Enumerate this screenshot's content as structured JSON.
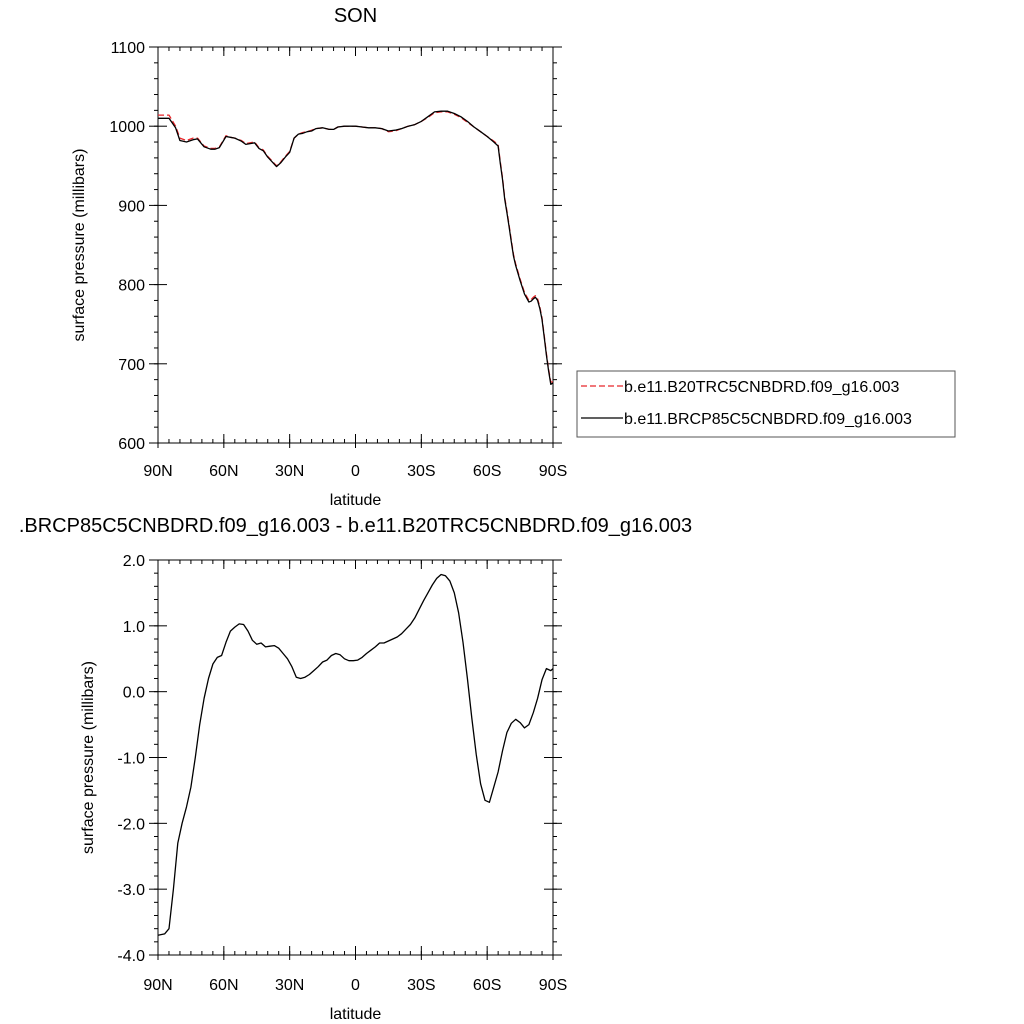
{
  "chart_data": [
    {
      "type": "line",
      "title": "SON",
      "xlabel": "latitude",
      "ylabel": "surface pressure (millibars)",
      "x_ticks": [
        {
          "value": -90,
          "label": "90N"
        },
        {
          "value": -60,
          "label": "60N"
        },
        {
          "value": -30,
          "label": "30N"
        },
        {
          "value": 0,
          "label": "0"
        },
        {
          "value": 30,
          "label": "30S"
        },
        {
          "value": 60,
          "label": "60S"
        },
        {
          "value": 90,
          "label": "90S"
        }
      ],
      "y_ticks": [
        {
          "value": 600,
          "label": "600"
        },
        {
          "value": 700,
          "label": "700"
        },
        {
          "value": 800,
          "label": "800"
        },
        {
          "value": 900,
          "label": "900"
        },
        {
          "value": 1000,
          "label": "1000"
        },
        {
          "value": 1100,
          "label": "1100"
        }
      ],
      "xlim": [
        -90,
        90
      ],
      "ylim": [
        600,
        1100
      ],
      "legend_position": "right",
      "series": [
        {
          "name": "b.e11.B20TRC5CNBDRD.f09_g16.003",
          "color": "#e8262a",
          "dash": "dashed",
          "x": [
            -90,
            -85,
            -82,
            -80,
            -77,
            -74,
            -72,
            -69,
            -66,
            -64,
            -62,
            -59,
            -57,
            -55,
            -52,
            -50,
            -48,
            -46,
            -44,
            -42,
            -40,
            -38,
            -36,
            -34,
            -32,
            -30,
            -28,
            -26,
            -24,
            -22,
            -20,
            -18,
            -15,
            -12,
            -10,
            -8,
            -5,
            -2,
            0,
            3,
            6,
            9,
            12,
            15,
            18,
            21,
            24,
            27,
            30,
            33,
            36,
            39,
            42,
            45,
            48,
            51,
            54,
            57,
            60,
            63,
            65,
            66,
            67,
            68,
            69,
            70,
            71,
            72,
            73,
            75,
            77,
            79,
            80,
            81,
            82,
            83,
            84,
            85,
            86,
            87,
            88,
            89,
            90
          ],
          "values": [
            1014,
            1014,
            1000,
            985,
            982,
            985,
            985,
            975,
            972,
            972,
            974,
            988,
            986,
            985,
            982,
            978,
            979,
            980,
            973,
            970,
            962,
            956,
            950,
            955,
            962,
            968,
            985,
            990,
            992,
            993,
            995,
            997,
            998,
            996,
            996,
            999,
            1000,
            1000,
            1000,
            999,
            998,
            998,
            997,
            993,
            994,
            997,
            1000,
            1002,
            1006,
            1011,
            1017,
            1018,
            1018,
            1015,
            1011,
            1005,
            999,
            993,
            987,
            981,
            977,
            955,
            935,
            910,
            893,
            875,
            856,
            838,
            826,
            807,
            790,
            780,
            781,
            784,
            786,
            782,
            772,
            758,
            736,
            713,
            693,
            677,
            677
          ]
        },
        {
          "name": "b.e11.BRCP85C5CNBDRD.f09_g16.003",
          "color": "#000000",
          "dash": "solid",
          "x": [
            -90,
            -85,
            -82,
            -80,
            -77,
            -74,
            -72,
            -69,
            -66,
            -64,
            -62,
            -59,
            -57,
            -55,
            -52,
            -50,
            -48,
            -46,
            -44,
            -42,
            -40,
            -38,
            -36,
            -34,
            -32,
            -30,
            -28,
            -26,
            -24,
            -22,
            -20,
            -18,
            -15,
            -12,
            -10,
            -8,
            -5,
            -2,
            0,
            3,
            6,
            9,
            12,
            15,
            18,
            21,
            24,
            27,
            30,
            33,
            36,
            39,
            42,
            45,
            48,
            51,
            54,
            57,
            60,
            63,
            65,
            66,
            67,
            68,
            69,
            70,
            71,
            72,
            73,
            75,
            77,
            79,
            80,
            81,
            82,
            83,
            84,
            85,
            86,
            87,
            88,
            89,
            90
          ],
          "values": [
            1010,
            1010,
            998,
            982,
            980,
            983,
            984,
            974,
            971,
            971,
            973,
            987,
            986,
            985,
            981,
            977,
            978,
            979,
            972,
            969,
            961,
            955,
            949,
            954,
            961,
            967,
            985,
            990,
            991,
            993,
            994,
            997,
            998,
            996,
            996,
            999,
            1000,
            1000,
            1000,
            999,
            998,
            998,
            997,
            994,
            995,
            997,
            1000,
            1002,
            1006,
            1012,
            1018,
            1019,
            1019,
            1016,
            1012,
            1006,
            999,
            993,
            987,
            980,
            975,
            953,
            933,
            908,
            891,
            873,
            854,
            836,
            824,
            805,
            788,
            778,
            779,
            782,
            784,
            780,
            770,
            756,
            734,
            711,
            691,
            674,
            676
          ]
        }
      ]
    },
    {
      "type": "line",
      "title": ".BRCP85C5CNBDRD.f09_g16.003 - b.e11.B20TRC5CNBDRD.f09_g16.003",
      "xlabel": "latitude",
      "ylabel": "surface pressure (millibars)",
      "x_ticks": [
        {
          "value": -90,
          "label": "90N"
        },
        {
          "value": -60,
          "label": "60N"
        },
        {
          "value": -30,
          "label": "30N"
        },
        {
          "value": 0,
          "label": "0"
        },
        {
          "value": 30,
          "label": "30S"
        },
        {
          "value": 60,
          "label": "60S"
        },
        {
          "value": 90,
          "label": "90S"
        }
      ],
      "y_ticks": [
        {
          "value": -4,
          "label": "-4.0"
        },
        {
          "value": -3,
          "label": "-3.0"
        },
        {
          "value": -2,
          "label": "-2.0"
        },
        {
          "value": -1,
          "label": "-1.0"
        },
        {
          "value": 0,
          "label": "0.0"
        },
        {
          "value": 1,
          "label": "1.0"
        },
        {
          "value": 2,
          "label": "2.0"
        }
      ],
      "xlim": [
        -90,
        90
      ],
      "ylim": [
        -4,
        2
      ],
      "series": [
        {
          "color": "#000000",
          "dash": "solid",
          "x": [
            -90,
            -87,
            -85,
            -83,
            -81,
            -79,
            -77,
            -75,
            -73,
            -71,
            -69,
            -67,
            -65,
            -63,
            -61,
            -59,
            -57,
            -55,
            -53,
            -51,
            -49,
            -47,
            -45,
            -43,
            -41,
            -39,
            -37,
            -35,
            -33,
            -31,
            -29,
            -27,
            -25,
            -23,
            -21,
            -19,
            -17,
            -15,
            -13,
            -11,
            -9,
            -7,
            -5,
            -3,
            -1,
            1,
            3,
            5,
            7,
            9,
            11,
            13,
            15,
            17,
            19,
            21,
            23,
            25,
            27,
            29,
            31,
            33,
            35,
            37,
            39,
            41,
            43,
            45,
            47,
            49,
            51,
            53,
            55,
            57,
            59,
            61,
            63,
            65,
            67,
            69,
            71,
            73,
            75,
            77,
            79,
            81,
            83,
            85,
            87,
            89,
            90
          ],
          "values": [
            -3.7,
            -3.68,
            -3.6,
            -3.0,
            -2.3,
            -2.0,
            -1.75,
            -1.45,
            -1.0,
            -0.5,
            -0.1,
            0.2,
            0.42,
            0.52,
            0.55,
            0.75,
            0.92,
            0.98,
            1.03,
            1.02,
            0.92,
            0.78,
            0.72,
            0.74,
            0.68,
            0.69,
            0.7,
            0.66,
            0.58,
            0.5,
            0.38,
            0.22,
            0.2,
            0.22,
            0.26,
            0.32,
            0.38,
            0.45,
            0.48,
            0.55,
            0.58,
            0.56,
            0.5,
            0.47,
            0.47,
            0.48,
            0.52,
            0.58,
            0.63,
            0.68,
            0.74,
            0.74,
            0.77,
            0.8,
            0.83,
            0.88,
            0.95,
            1.02,
            1.12,
            1.25,
            1.38,
            1.5,
            1.62,
            1.72,
            1.78,
            1.76,
            1.68,
            1.5,
            1.2,
            0.75,
            0.2,
            -0.4,
            -0.95,
            -1.4,
            -1.65,
            -1.68,
            -1.45,
            -1.22,
            -0.9,
            -0.62,
            -0.48,
            -0.42,
            -0.47,
            -0.55,
            -0.5,
            -0.32,
            -0.1,
            0.18,
            0.35,
            0.32,
            0.35
          ]
        }
      ]
    }
  ]
}
